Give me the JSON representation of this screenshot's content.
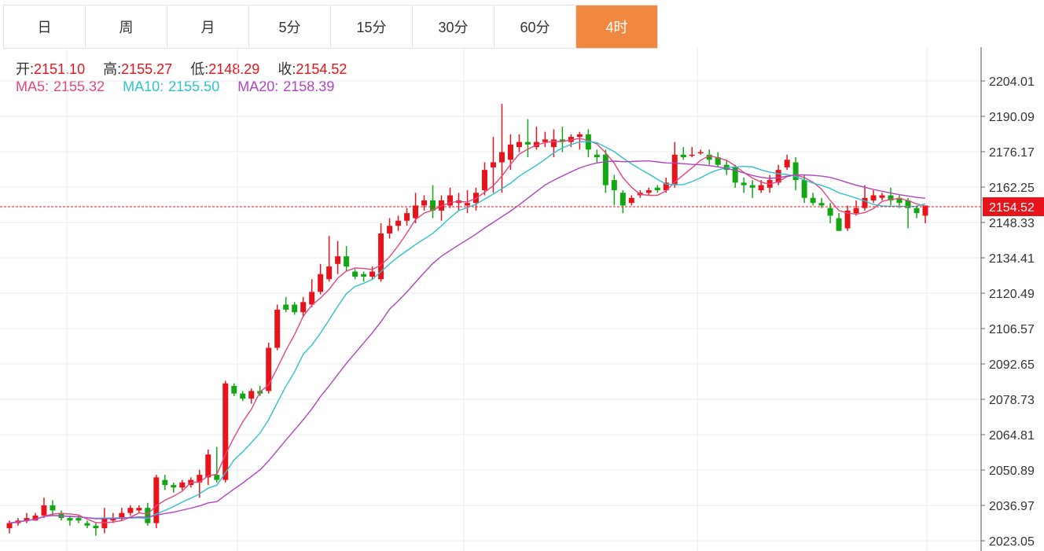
{
  "tabs": [
    {
      "label": "日"
    },
    {
      "label": "周"
    },
    {
      "label": "月"
    },
    {
      "label": "5分"
    },
    {
      "label": "15分"
    },
    {
      "label": "30分"
    },
    {
      "label": "60分"
    },
    {
      "label": "4时"
    }
  ],
  "active_tab": 7,
  "colors": {
    "up": "#e8141b",
    "down": "#13a813",
    "active_tab": "#f0883f",
    "ma5": "#e6467d",
    "ma10": "#2ec1cf",
    "ma20": "#b044c0",
    "grid": "#e6ecf1",
    "label": "#333333",
    "value": "#e8141b"
  },
  "ohlc": {
    "open_label": "开:",
    "open": "2151.10",
    "high_label": "高:",
    "high": "2155.27",
    "low_label": "低:",
    "low": "2148.29",
    "close_label": "收:",
    "close": "2154.52"
  },
  "ma": {
    "ma5_label": "MA5:",
    "ma5": "2155.32",
    "ma10_label": "MA10:",
    "ma10": "2155.50",
    "ma20_label": "MA20:",
    "ma20": "2158.39"
  },
  "chart_data": {
    "type": "candlestick",
    "y_ticks": [
      "2204.01",
      "2190.09",
      "2176.17",
      "2162.25",
      "2148.33",
      "2134.41",
      "2120.49",
      "2106.57",
      "2092.65",
      "2078.73",
      "2064.81",
      "2050.89",
      "2036.97",
      "2023.05"
    ],
    "ylim": [
      2023.05,
      2204.01
    ],
    "last_price": "2154.52",
    "candles": [
      [
        2028,
        2030,
        2026,
        2031
      ],
      [
        2030,
        2031,
        2029,
        2032
      ],
      [
        2031,
        2032,
        2030,
        2034
      ],
      [
        2031,
        2033,
        2031,
        2034
      ],
      [
        2033,
        2037,
        2032,
        2040
      ],
      [
        2037,
        2035,
        2033,
        2039
      ],
      [
        2034,
        2032,
        2031,
        2035
      ],
      [
        2032,
        2031,
        2029,
        2033
      ],
      [
        2032,
        2031,
        2030,
        2033
      ],
      [
        2030,
        2029,
        2028,
        2031
      ],
      [
        2029,
        2028,
        2025,
        2030
      ],
      [
        2028,
        2032,
        2026,
        2036
      ],
      [
        2031,
        2032,
        2030,
        2034
      ],
      [
        2032,
        2034,
        2031,
        2036
      ],
      [
        2034,
        2036,
        2033,
        2037
      ],
      [
        2035,
        2036,
        2034,
        2037
      ],
      [
        2036,
        2030,
        2029,
        2038
      ],
      [
        2030,
        2048,
        2028,
        2049
      ],
      [
        2047,
        2045,
        2043,
        2049
      ],
      [
        2045,
        2044,
        2042,
        2046
      ],
      [
        2044,
        2046,
        2043,
        2047
      ],
      [
        2045,
        2047,
        2044,
        2048
      ],
      [
        2046,
        2049,
        2040,
        2051
      ],
      [
        2048,
        2057,
        2045,
        2059
      ],
      [
        2049,
        2047,
        2046,
        2060
      ],
      [
        2047,
        2085,
        2046,
        2086
      ],
      [
        2084,
        2081,
        2080,
        2085
      ],
      [
        2081,
        2079,
        2078,
        2082
      ],
      [
        2079,
        2082,
        2077,
        2083
      ],
      [
        2082,
        2081,
        2080,
        2084
      ],
      [
        2082,
        2099,
        2081,
        2101
      ],
      [
        2099,
        2114,
        2098,
        2116
      ],
      [
        2116,
        2114,
        2113,
        2119
      ],
      [
        2116,
        2113,
        2112,
        2117
      ],
      [
        2113,
        2117,
        2111,
        2119
      ],
      [
        2116,
        2121,
        2115,
        2126
      ],
      [
        2121,
        2128,
        2120,
        2132
      ],
      [
        2126,
        2131,
        2125,
        2143
      ],
      [
        2132,
        2135,
        2128,
        2141
      ],
      [
        2135,
        2131,
        2129,
        2139
      ],
      [
        2129,
        2127,
        2126,
        2130
      ],
      [
        2128,
        2127,
        2125,
        2129
      ],
      [
        2127,
        2129,
        2126,
        2131
      ],
      [
        2126,
        2144,
        2125,
        2148
      ],
      [
        2144,
        2147,
        2142,
        2150
      ],
      [
        2147,
        2149,
        2145,
        2151
      ],
      [
        2149,
        2152,
        2147,
        2154
      ],
      [
        2150,
        2155,
        2148,
        2160
      ],
      [
        2155,
        2157,
        2153,
        2159
      ],
      [
        2157,
        2153,
        2150,
        2163
      ],
      [
        2153,
        2157,
        2149,
        2159
      ],
      [
        2155,
        2159,
        2154,
        2162
      ],
      [
        2156,
        2157,
        2153,
        2160
      ],
      [
        2155,
        2156,
        2152,
        2161
      ],
      [
        2156,
        2160,
        2153,
        2162
      ],
      [
        2161,
        2169,
        2159,
        2172
      ],
      [
        2170,
        2172,
        2160,
        2182
      ],
      [
        2172,
        2176,
        2160,
        2195
      ],
      [
        2173,
        2179,
        2169,
        2183
      ],
      [
        2178,
        2180,
        2176,
        2183
      ],
      [
        2180,
        2179,
        2174,
        2189
      ],
      [
        2178,
        2180,
        2177,
        2186
      ],
      [
        2180,
        2181,
        2178,
        2184
      ],
      [
        2178,
        2181,
        2174,
        2185
      ],
      [
        2181,
        2180,
        2176,
        2186
      ],
      [
        2180,
        2182,
        2178,
        2183
      ],
      [
        2182,
        2183,
        2177,
        2184
      ],
      [
        2183,
        2177,
        2174,
        2185
      ],
      [
        2175,
        2174,
        2172,
        2177
      ],
      [
        2175,
        2163,
        2160,
        2177
      ],
      [
        2165,
        2161,
        2155,
        2167
      ],
      [
        2160,
        2155,
        2152,
        2161
      ],
      [
        2156,
        2158,
        2155,
        2159
      ],
      [
        2159,
        2160,
        2158,
        2161
      ],
      [
        2160,
        2161,
        2159,
        2162
      ],
      [
        2162,
        2161,
        2160,
        2163
      ],
      [
        2161,
        2164,
        2160,
        2166
      ],
      [
        2163,
        2175,
        2162,
        2180
      ],
      [
        2175,
        2174,
        2173,
        2178
      ],
      [
        2175,
        2175,
        2174,
        2178
      ],
      [
        2176,
        2176,
        2175,
        2177
      ],
      [
        2175,
        2173,
        2171,
        2177
      ],
      [
        2174,
        2171,
        2170,
        2176
      ],
      [
        2171,
        2169,
        2167,
        2173
      ],
      [
        2170,
        2164,
        2162,
        2171
      ],
      [
        2164,
        2163,
        2160,
        2166
      ],
      [
        2163,
        2162,
        2158,
        2165
      ],
      [
        2161,
        2163,
        2160,
        2165
      ],
      [
        2162,
        2165,
        2160,
        2167
      ],
      [
        2164,
        2169,
        2163,
        2171
      ],
      [
        2170,
        2173,
        2169,
        2175
      ],
      [
        2172,
        2165,
        2161,
        2174
      ],
      [
        2165,
        2158,
        2156,
        2167
      ],
      [
        2158,
        2156,
        2155,
        2160
      ],
      [
        2156,
        2155,
        2154,
        2158
      ],
      [
        2154,
        2151,
        2148,
        2156
      ],
      [
        2150,
        2145,
        2145,
        2152
      ],
      [
        2146,
        2153,
        2145,
        2155
      ],
      [
        2152,
        2154,
        2151,
        2157
      ],
      [
        2154,
        2158,
        2153,
        2163
      ],
      [
        2157,
        2159,
        2156,
        2161
      ],
      [
        2158,
        2159,
        2157,
        2160
      ],
      [
        2159,
        2157,
        2155,
        2162
      ],
      [
        2158,
        2156,
        2154,
        2159
      ],
      [
        2157,
        2154,
        2146,
        2158
      ],
      [
        2154,
        2152,
        2150,
        2155
      ],
      [
        2151,
        2155,
        2148,
        2155
      ]
    ]
  }
}
